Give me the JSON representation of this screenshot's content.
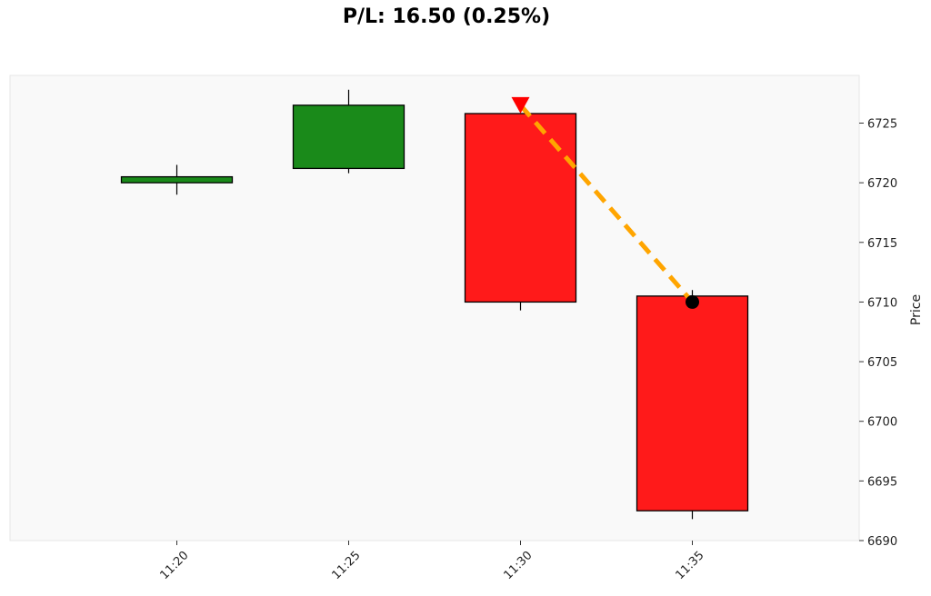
{
  "chart_data": {
    "type": "candlestick",
    "title": "P/L: 16.50 (0.25%)",
    "ylabel": "Price",
    "xlabel": "",
    "ylim": [
      6690,
      6729
    ],
    "yticks": [
      6690,
      6695,
      6700,
      6705,
      6710,
      6715,
      6720,
      6725
    ],
    "grid": false,
    "candles": [
      {
        "x": "11:20",
        "open": 6720.0,
        "high": 6721.5,
        "low": 6719.0,
        "close": 6720.5
      },
      {
        "x": "11:25",
        "open": 6721.2,
        "high": 6727.8,
        "low": 6720.8,
        "close": 6726.5
      },
      {
        "x": "11:30",
        "open": 6725.8,
        "high": 6725.8,
        "low": 6709.3,
        "close": 6710.0
      },
      {
        "x": "11:35",
        "open": 6710.5,
        "high": 6711.0,
        "low": 6691.8,
        "close": 6692.5
      }
    ],
    "trade": {
      "entry": {
        "x": "11:30",
        "price": 6726.5,
        "marker": "down-triangle"
      },
      "exit": {
        "x": "11:35",
        "price": 6710.0,
        "marker": "circle"
      }
    },
    "colors": {
      "up": "#1a8a1a",
      "down": "#ff1a1a",
      "edge": "#000000",
      "trade_line": "#ffa500",
      "entry_marker": "#ff0000",
      "exit_marker": "#000000",
      "plot_bg": "#f9f9f9"
    }
  }
}
